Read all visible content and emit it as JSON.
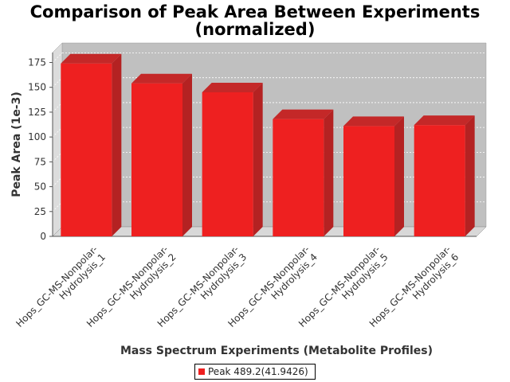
{
  "chart_data": {
    "type": "bar",
    "title_line1": "Comparison of Peak Area Between Experiments",
    "title_line2": "(normalized)",
    "xlabel": "Mass Spectrum Experiments (Metabolite Profiles)",
    "ylabel": "Peak Area (1e-3)",
    "ylim": [
      0,
      185
    ],
    "yticks": [
      0,
      25,
      50,
      75,
      100,
      125,
      150,
      175
    ],
    "grid": true,
    "legend_position": "bottom",
    "categories": [
      [
        "Hops_GC-MS-Nonpolar-",
        "Hydrolysis_1"
      ],
      [
        "Hops_GC-MS-Nonpolar-",
        "Hydrolysis_2"
      ],
      [
        "Hops_GC-MS-Nonpolar-",
        "Hydrolysis_3"
      ],
      [
        "Hops_GC-MS-Nonpolar-",
        "Hydrolysis_4"
      ],
      [
        "Hops_GC-MS-Nonpolar-",
        "Hydrolysis_5"
      ],
      [
        "Hops_GC-MS-Nonpolar-",
        "Hydrolysis_6"
      ]
    ],
    "series": [
      {
        "name": "Peak 489.2(41.9426)",
        "color": "#ee2020",
        "values": [
          174,
          154,
          145,
          118,
          111,
          112
        ]
      }
    ]
  }
}
